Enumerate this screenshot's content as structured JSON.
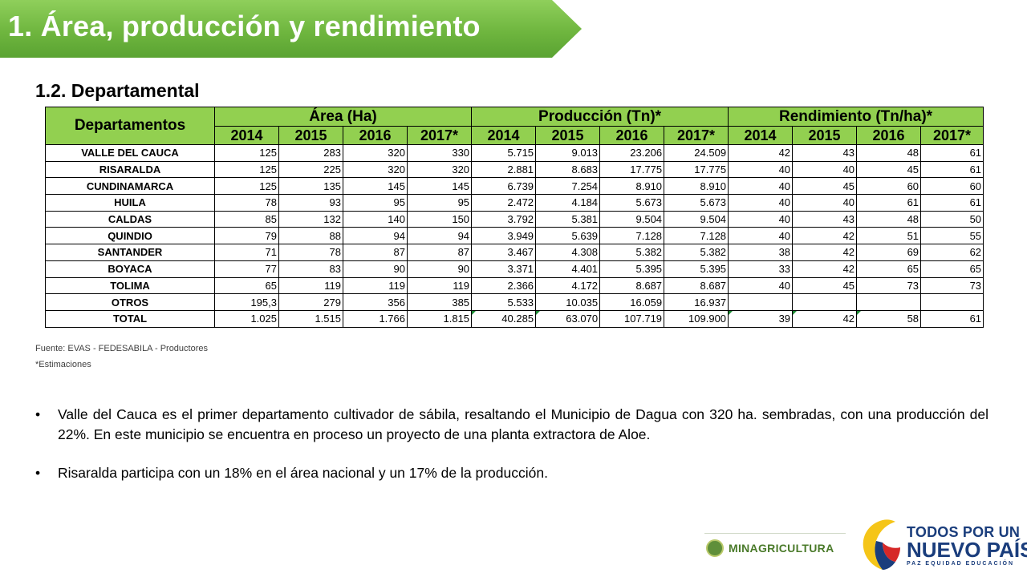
{
  "header": {
    "title": "1. Área, producción y rendimiento",
    "subtitle": "1.2. Departamental"
  },
  "table": {
    "dept_header": "Departamentos",
    "groups": [
      "Área (Ha)",
      "Producción  (Tn)*",
      "Rendimiento (Tn/ha)*"
    ],
    "years": [
      "2014",
      "2015",
      "2016",
      "2017*",
      "2014",
      "2015",
      "2016",
      "2017*",
      "2014",
      "2015",
      "2016",
      "2017*"
    ],
    "rows": [
      {
        "dept": "VALLE DEL CAUCA",
        "area": [
          "125",
          "283",
          "320",
          "330"
        ],
        "produccion": [
          "5.715",
          "9.013",
          "23.206",
          "24.509"
        ],
        "rendimiento": [
          "42",
          "43",
          "48",
          "61"
        ]
      },
      {
        "dept": "RISARALDA",
        "area": [
          "125",
          "225",
          "320",
          "320"
        ],
        "produccion": [
          "2.881",
          "8.683",
          "17.775",
          "17.775"
        ],
        "rendimiento": [
          "40",
          "40",
          "45",
          "61"
        ]
      },
      {
        "dept": "CUNDINAMARCA",
        "area": [
          "125",
          "135",
          "145",
          "145"
        ],
        "produccion": [
          "6.739",
          "7.254",
          "8.910",
          "8.910"
        ],
        "rendimiento": [
          "40",
          "45",
          "60",
          "60"
        ]
      },
      {
        "dept": "HUILA",
        "area": [
          "78",
          "93",
          "95",
          "95"
        ],
        "produccion": [
          "2.472",
          "4.184",
          "5.673",
          "5.673"
        ],
        "rendimiento": [
          "40",
          "40",
          "61",
          "61"
        ]
      },
      {
        "dept": "CALDAS",
        "area": [
          "85",
          "132",
          "140",
          "150"
        ],
        "produccion": [
          "3.792",
          "5.381",
          "9.504",
          "9.504"
        ],
        "rendimiento": [
          "40",
          "43",
          "48",
          "50"
        ]
      },
      {
        "dept": "QUINDIO",
        "area": [
          "79",
          "88",
          "94",
          "94"
        ],
        "produccion": [
          "3.949",
          "5.639",
          "7.128",
          "7.128"
        ],
        "rendimiento": [
          "40",
          "42",
          "51",
          "55"
        ]
      },
      {
        "dept": "SANTANDER",
        "area": [
          "71",
          "78",
          "87",
          "87"
        ],
        "produccion": [
          "3.467",
          "4.308",
          "5.382",
          "5.382"
        ],
        "rendimiento": [
          "38",
          "42",
          "69",
          "62"
        ]
      },
      {
        "dept": "BOYACA",
        "area": [
          "77",
          "83",
          "90",
          "90"
        ],
        "produccion": [
          "3.371",
          "4.401",
          "5.395",
          "5.395"
        ],
        "rendimiento": [
          "33",
          "42",
          "65",
          "65"
        ]
      },
      {
        "dept": "TOLIMA",
        "area": [
          "65",
          "119",
          "119",
          "119"
        ],
        "produccion": [
          "2.366",
          "4.172",
          "8.687",
          "8.687"
        ],
        "rendimiento": [
          "40",
          "45",
          "73",
          "73"
        ]
      },
      {
        "dept": "OTROS",
        "area": [
          "195,3",
          "279",
          "356",
          "385"
        ],
        "produccion": [
          "5.533",
          "10.035",
          "16.059",
          "16.937"
        ],
        "rendimiento": [
          "",
          "",
          "",
          ""
        ]
      },
      {
        "dept": "TOTAL",
        "area": [
          "1.025",
          "1.515",
          "1.766",
          "1.815"
        ],
        "produccion": [
          "40.285",
          "63.070",
          "107.719",
          "109.900"
        ],
        "rendimiento": [
          "39",
          "42",
          "58",
          "61"
        ]
      }
    ]
  },
  "notes": {
    "source": "Fuente: EVAS - FEDESABILA  - Productores",
    "estimate": "*Estimaciones"
  },
  "bullets": [
    "Valle del Cauca es el primer departamento cultivador de sábila, resaltando el Municipio de Dagua con 320 ha. sembradas, con una producción del 22%.  En este municipio se encuentra en proceso un proyecto de una planta extractora de Aloe.",
    "Risaralda participa con un 18% en el área nacional y un 17%  de la producción."
  ],
  "footer": {
    "minagri": "MINAGRICULTURA",
    "todos_line1": "TODOS POR UN",
    "todos_line2": "NUEVO PAÍS",
    "todos_line3": "PAZ  EQUIDAD  EDUCACIÓN"
  },
  "colors": {
    "banner_green": "#6fb63f",
    "table_header_green": "#92d050",
    "logo_blue": "#1a3d7c"
  }
}
